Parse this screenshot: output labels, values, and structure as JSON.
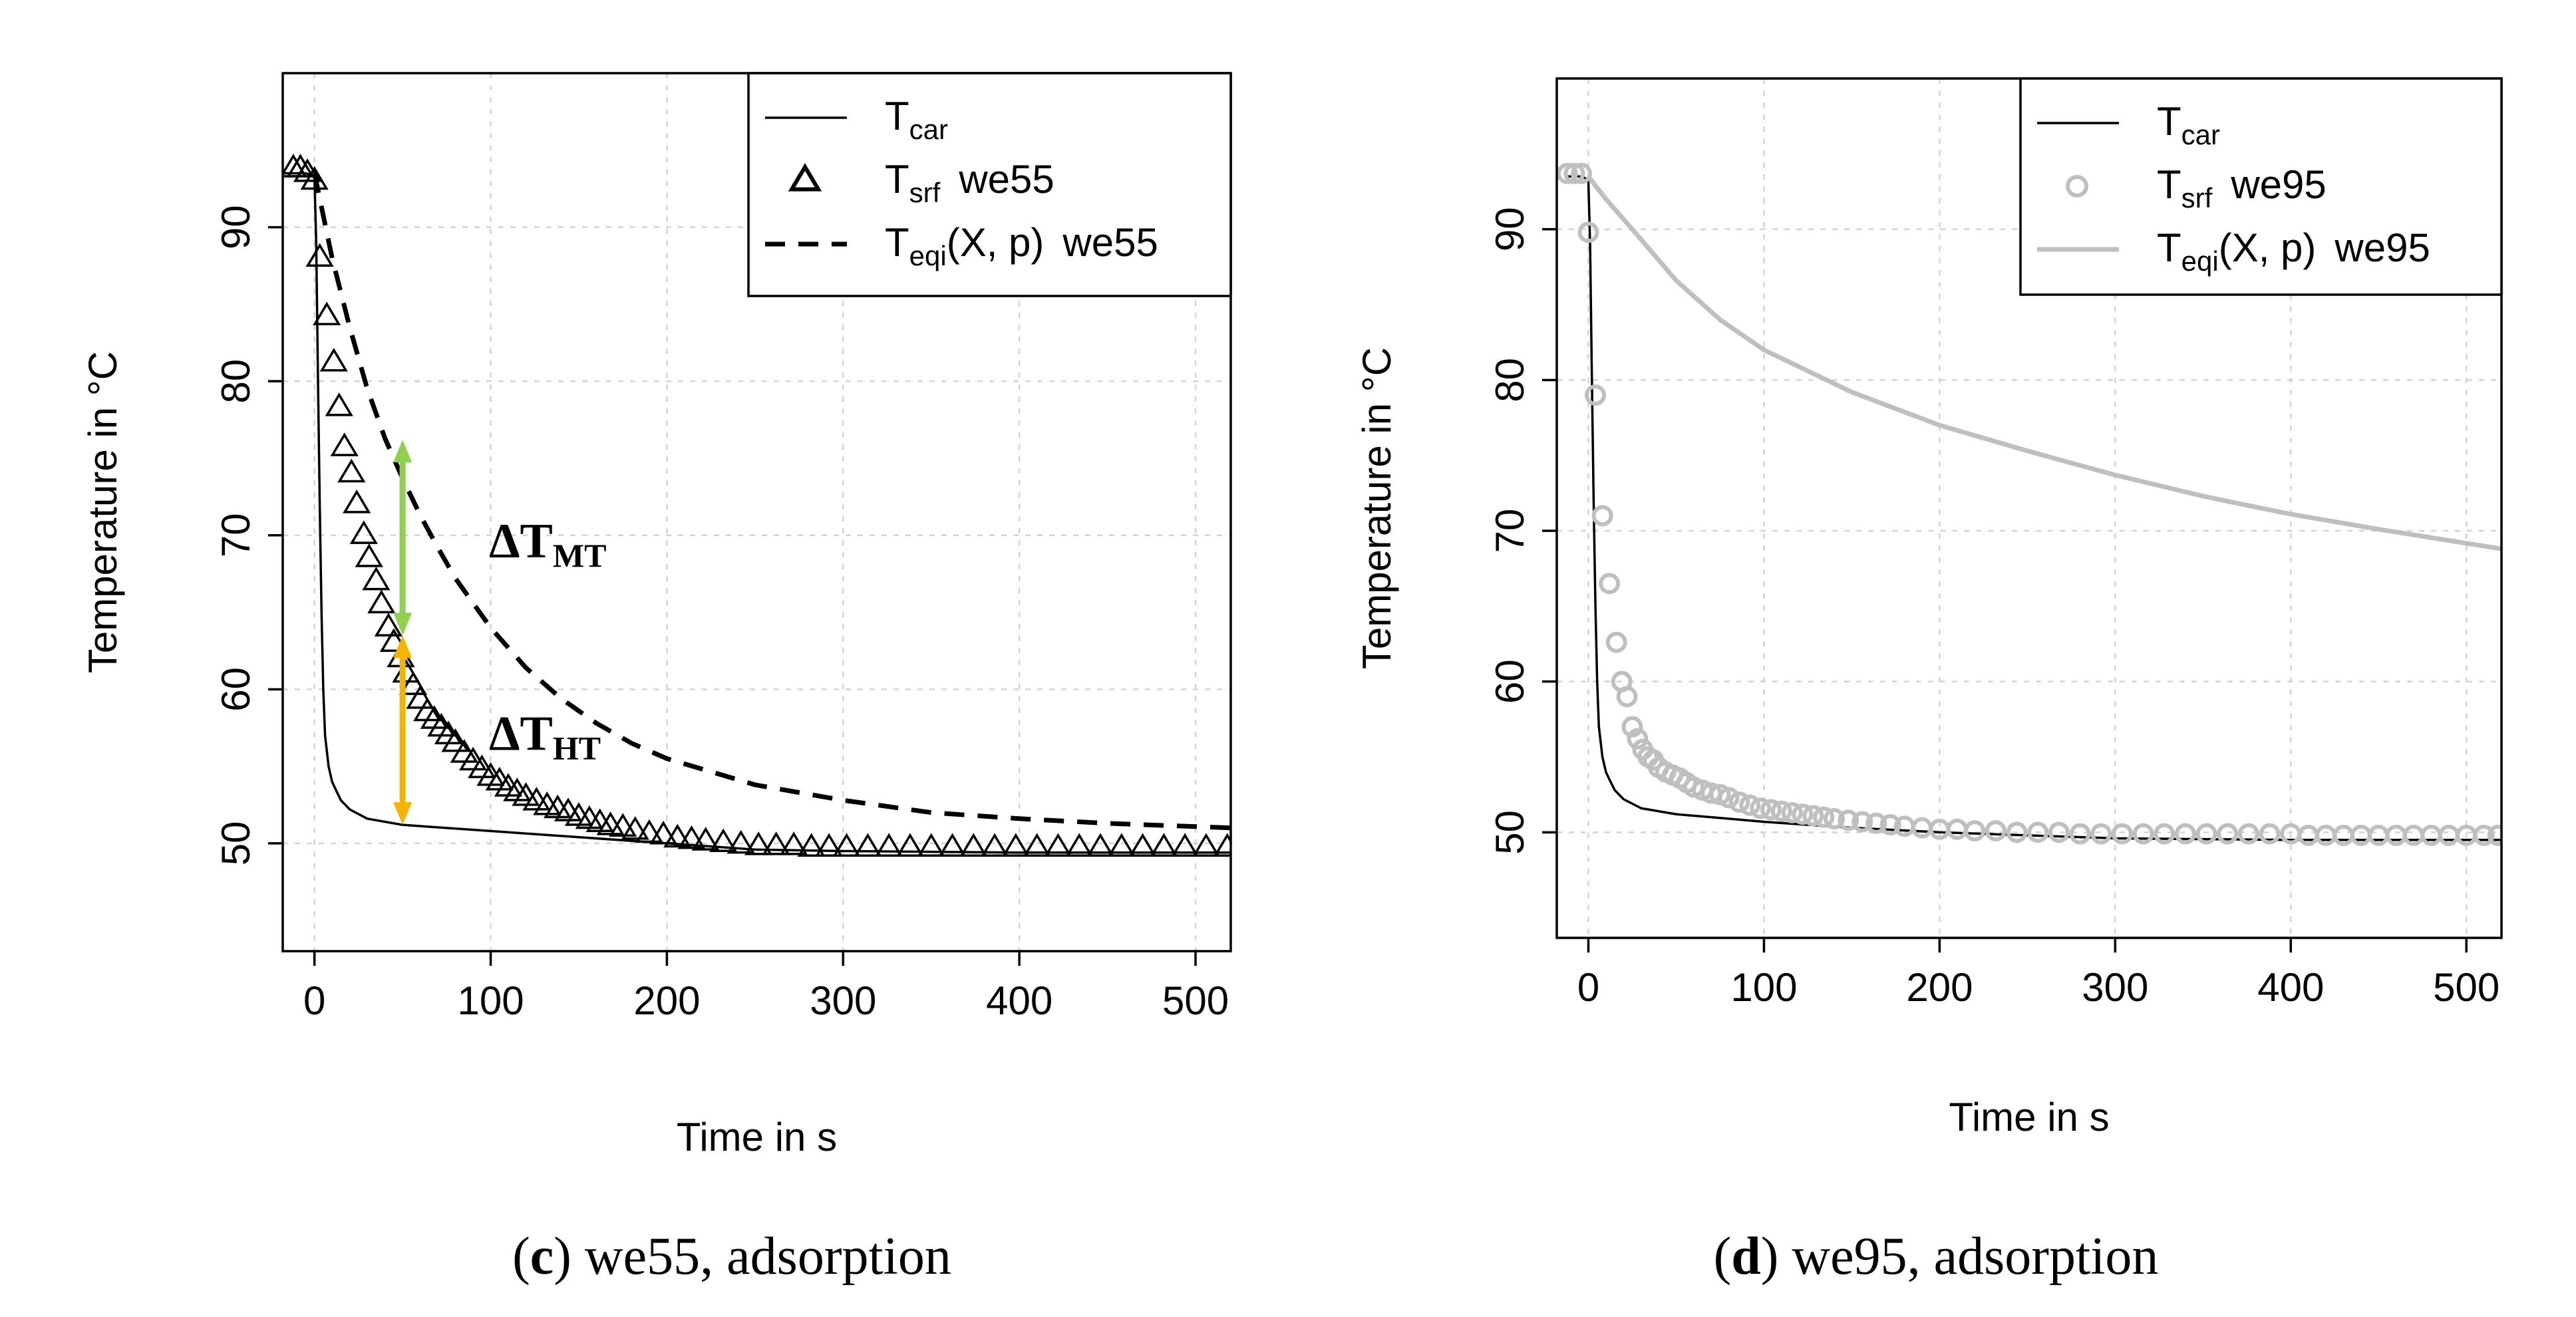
{
  "chart_data": [
    {
      "type": "line",
      "caption": {
        "letter": "c",
        "text": "we55, adsorption"
      },
      "xlabel": "Time in s",
      "ylabel": "Temperature in °C",
      "xlim": [
        -18,
        520
      ],
      "ylim": [
        43,
        100
      ],
      "xticks": [
        0,
        100,
        200,
        300,
        400,
        500
      ],
      "yticks": [
        50,
        60,
        70,
        80,
        90
      ],
      "grid": true,
      "legend_position": "top-right",
      "legend": [
        {
          "main": "T",
          "sub": "car",
          "rest": "",
          "tag": "",
          "style": "solid-line",
          "color": "#000000"
        },
        {
          "main": "T",
          "sub": "srf",
          "rest": "",
          "tag": "we55",
          "style": "triangle",
          "color": "#000000"
        },
        {
          "main": "T",
          "sub": "eqi",
          "rest": "(X, p)",
          "tag": "we55",
          "style": "dashed-line",
          "color": "#000000"
        }
      ],
      "series": [
        {
          "name": "T_car",
          "style": "solid-line",
          "color": "#000000",
          "x": [
            -18,
            -5,
            -2,
            0,
            1,
            2,
            3,
            4,
            5,
            6,
            8,
            10,
            12,
            15,
            20,
            30,
            50,
            100,
            150,
            200,
            250,
            300,
            400,
            520
          ],
          "y": [
            93.5,
            93.5,
            93.4,
            93.2,
            89,
            80,
            72,
            65,
            60,
            57,
            55,
            54,
            53.5,
            52.8,
            52.2,
            51.6,
            51.2,
            50.8,
            50.4,
            50,
            49.6,
            49.5,
            49.4,
            49.4
          ]
        },
        {
          "name": "T_srf we55",
          "style": "triangle",
          "color": "#000000",
          "x": [
            -12,
            -8,
            -4,
            0,
            3,
            7,
            11,
            14,
            17,
            21,
            24,
            28,
            31,
            35,
            38,
            42,
            45,
            49,
            52,
            56,
            60,
            64,
            68,
            72,
            76,
            80,
            85,
            90,
            95,
            100,
            105,
            110,
            115,
            120,
            126,
            132,
            138,
            144,
            150,
            156,
            162,
            168,
            175,
            182,
            190,
            198,
            206,
            214,
            222,
            232,
            242,
            252,
            262,
            272,
            282,
            292,
            302,
            314,
            326,
            338,
            350,
            362,
            374,
            386,
            398,
            410,
            422,
            434,
            446,
            458,
            470,
            482,
            494,
            506,
            518
          ],
          "y": [
            93.8,
            93.8,
            93.5,
            93,
            88,
            84.2,
            81.2,
            78.3,
            75.7,
            74,
            72,
            70,
            68.5,
            67,
            65.5,
            64,
            63,
            62,
            61,
            60.2,
            59.3,
            58.5,
            58,
            57.5,
            57,
            56.5,
            55.8,
            55.3,
            54.8,
            54.3,
            54,
            53.6,
            53.3,
            53,
            52.7,
            52.4,
            52.2,
            52,
            51.7,
            51.5,
            51.3,
            51.1,
            51,
            50.8,
            50.6,
            50.5,
            50.3,
            50.2,
            50.1,
            50,
            49.9,
            49.8,
            49.8,
            49.8,
            49.7,
            49.7,
            49.7,
            49.7,
            49.7,
            49.7,
            49.7,
            49.7,
            49.7,
            49.7,
            49.7,
            49.7,
            49.7,
            49.7,
            49.7,
            49.7,
            49.7,
            49.7,
            49.7,
            49.7,
            49.7
          ]
        },
        {
          "name": "T_eqi(X,p) we55",
          "style": "dashed-line",
          "color": "#000000",
          "x": [
            0,
            10,
            20,
            30,
            40,
            50,
            60,
            70,
            80,
            100,
            120,
            140,
            160,
            180,
            200,
            250,
            300,
            350,
            400,
            450,
            520
          ],
          "y": [
            93.5,
            88,
            83.5,
            79.5,
            76.3,
            73.7,
            71.3,
            69.2,
            67.2,
            64,
            61.4,
            59.4,
            57.8,
            56.5,
            55.5,
            53.8,
            52.8,
            52,
            51.6,
            51.3,
            51
          ]
        }
      ],
      "annotations": [
        {
          "label": "ΔT",
          "sub": "MT",
          "color": "#8fd14f",
          "x": 50,
          "y_from": 76.2,
          "y_to": 63.5
        },
        {
          "label": "ΔT",
          "sub": "HT",
          "color": "#f5b400",
          "x": 50,
          "y_from": 63.5,
          "y_to": 51.2
        }
      ]
    },
    {
      "type": "line",
      "caption": {
        "letter": "d",
        "text": "we95, adsorption"
      },
      "xlabel": "Time in s",
      "ylabel": "Temperature in °C",
      "xlim": [
        -18,
        520
      ],
      "ylim": [
        43,
        100
      ],
      "xticks": [
        0,
        100,
        200,
        300,
        400,
        500
      ],
      "yticks": [
        50,
        60,
        70,
        80,
        90
      ],
      "grid": true,
      "legend_position": "top-right",
      "legend": [
        {
          "main": "T",
          "sub": "car",
          "rest": "",
          "tag": "",
          "style": "solid-line",
          "color": "#000000"
        },
        {
          "main": "T",
          "sub": "srf",
          "rest": "",
          "tag": "we95",
          "style": "circle",
          "color": "#bfbfbf"
        },
        {
          "main": "T",
          "sub": "eqi",
          "rest": "(X, p)",
          "tag": "we95",
          "style": "solid-line",
          "color": "#bfbfbf"
        }
      ],
      "series": [
        {
          "name": "T_car",
          "style": "solid-line",
          "color": "#000000",
          "x": [
            -12,
            -5,
            -2,
            0,
            1,
            2,
            3,
            4,
            5,
            6,
            8,
            10,
            12,
            15,
            20,
            30,
            50,
            80,
            100,
            150,
            200,
            250,
            300,
            400,
            520
          ],
          "y": [
            93.5,
            93.5,
            93.4,
            93.2,
            89,
            80,
            72,
            65,
            60,
            57,
            55,
            54,
            53.5,
            52.8,
            52.2,
            51.6,
            51.2,
            50.9,
            50.7,
            50.3,
            50,
            49.8,
            49.6,
            49.5,
            49.5
          ]
        },
        {
          "name": "T_srf we95",
          "style": "circle",
          "color": "#bfbfbf",
          "x": [
            -12,
            -8,
            -4,
            0,
            4,
            8,
            12,
            16,
            19,
            22,
            25,
            28,
            31,
            34,
            37,
            40,
            44,
            48,
            52,
            56,
            60,
            65,
            70,
            75,
            80,
            86,
            92,
            98,
            104,
            110,
            116,
            122,
            128,
            134,
            140,
            148,
            156,
            164,
            172,
            180,
            190,
            200,
            210,
            220,
            232,
            244,
            256,
            268,
            280,
            292,
            304,
            316,
            328,
            340,
            352,
            364,
            376,
            388,
            400,
            410,
            420,
            430,
            440,
            450,
            460,
            470,
            480,
            490,
            500,
            510,
            518
          ],
          "y": [
            93.7,
            93.7,
            93.7,
            89.8,
            79,
            71,
            66.5,
            62.6,
            60,
            59,
            57,
            56.2,
            55.5,
            55,
            54.8,
            54.3,
            54,
            53.8,
            53.6,
            53.3,
            53,
            52.8,
            52.6,
            52.5,
            52.3,
            52,
            51.8,
            51.6,
            51.5,
            51.4,
            51.3,
            51.2,
            51.1,
            51,
            50.9,
            50.8,
            50.7,
            50.6,
            50.5,
            50.4,
            50.3,
            50.2,
            50.2,
            50.1,
            50.1,
            50,
            50,
            50,
            49.9,
            49.9,
            49.9,
            49.9,
            49.9,
            49.9,
            49.9,
            49.9,
            49.9,
            49.9,
            49.9,
            49.8,
            49.8,
            49.8,
            49.8,
            49.8,
            49.8,
            49.8,
            49.8,
            49.8,
            49.8,
            49.8,
            49.8
          ]
        },
        {
          "name": "T_eqi(X,p) we95",
          "style": "solid-line",
          "color": "#bfbfbf",
          "x": [
            0,
            10,
            25,
            50,
            75,
            100,
            150,
            200,
            250,
            300,
            350,
            400,
            450,
            520
          ],
          "y": [
            93.5,
            92,
            90,
            86.6,
            84,
            82,
            79.2,
            77,
            75.3,
            73.7,
            72.3,
            71.1,
            70.1,
            68.8
          ]
        }
      ],
      "annotations": []
    }
  ]
}
